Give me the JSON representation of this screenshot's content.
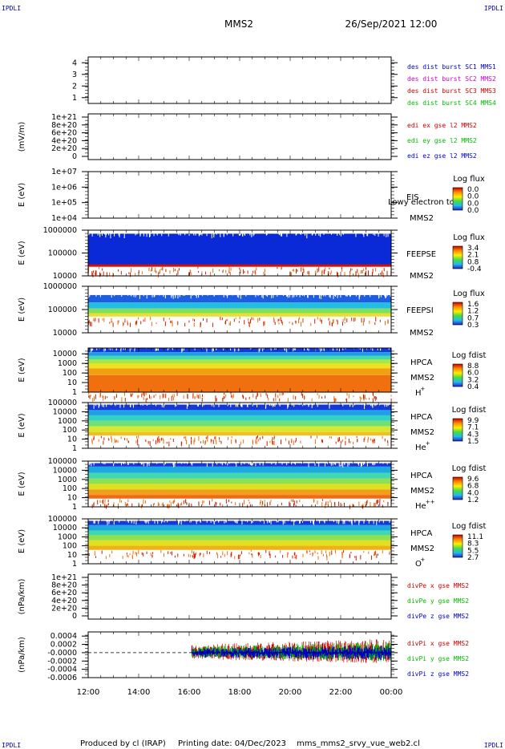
{
  "corner_labels": {
    "top_left": "IPDLI",
    "top_right": "IPDLI",
    "bottom_left": "IPDLI",
    "bottom_right": "IPDLI"
  },
  "header": {
    "title": "MMS2",
    "datetime": "26/Sep/2021 12:00"
  },
  "footer": {
    "produced_by": "Produced by cl (IRAP)",
    "printing_date": "Printing date: 04/Dec/2023",
    "filename": "mms_mms2_srvy_vue_web2.cl"
  },
  "colors": {
    "blue": "#0000cc",
    "magenta": "#cc00cc",
    "red": "#cc0000",
    "green": "#00bb00",
    "dash": "#000000"
  },
  "x_axis": {
    "tick_labels": [
      "12:00",
      "14:00",
      "16:00",
      "18:00",
      "20:00",
      "22:00",
      "00:00"
    ]
  },
  "chart_data": [
    {
      "type": "line",
      "panel": "dist-burst",
      "ylabel": "",
      "yticks": [
        "4",
        "3",
        "2",
        "1"
      ],
      "ylim": [
        0.5,
        4.5
      ],
      "legend": [
        "des dist burst SC1 MMS1",
        "des dist burst SC2 MMS2",
        "des dist burst SC3 MMS3",
        "des dist burst SC4 MMS4"
      ],
      "legend_colors": [
        "#0000cc",
        "#cc00cc",
        "#cc0000",
        "#00bb00"
      ],
      "series": []
    },
    {
      "type": "line",
      "panel": "edi-e-field",
      "ylabel": "(mV/m)",
      "yticks": [
        "1e+21",
        "8e+20",
        "6e+20",
        "4e+20",
        "2e+20",
        "0"
      ],
      "ylim": [
        0,
        1e+21
      ],
      "zero_line": true,
      "legend": [
        "edi ex gse l2 MMS2",
        "edi ey gse l2 MMS2",
        "edi ez gse l2 MMS2"
      ],
      "legend_colors": [
        "#cc0000",
        "#00bb00",
        "#0000cc"
      ],
      "series": []
    },
    {
      "type": "heatmap",
      "panel": "eis",
      "ylabel": "E (eV)",
      "yticks": [
        "1e+07",
        "1e+06",
        "1e+05",
        "1e+04"
      ],
      "ylim": [
        10000.0,
        10000000.0
      ],
      "log": true,
      "labels": [
        "EIS",
        "MMS2"
      ],
      "overlay_text": "Lowy electron to",
      "colorbar": {
        "title": "Log flux",
        "ticks": [
          "0.0",
          "0.0",
          "0.0",
          "0.0"
        ]
      }
    },
    {
      "type": "heatmap",
      "panel": "feeps-electron",
      "ylabel": "E (eV)",
      "yticks": [
        "1000000",
        "100000",
        "10000"
      ],
      "ylim": [
        10000.0,
        1000000.0
      ],
      "log": true,
      "labels": [
        "FEEPSE",
        "MMS2"
      ],
      "colorbar": {
        "title": "Log flux",
        "ticks": [
          "3.4",
          "2.1",
          "0.8",
          "-0.4"
        ]
      },
      "bands": [
        {
          "lo": 30000,
          "hi": 700000,
          "color": "#0a2ad8"
        },
        {
          "lo": 25000,
          "hi": 32000,
          "color": "#cc1100"
        }
      ]
    },
    {
      "type": "heatmap",
      "panel": "feeps-ion",
      "ylabel": "E (eV)",
      "yticks": [
        "1000000",
        "100000",
        "10000"
      ],
      "ylim": [
        10000.0,
        1000000.0
      ],
      "log": true,
      "labels": [
        "FEEPSI",
        "MMS2"
      ],
      "colorbar": {
        "title": "Log flux",
        "ticks": [
          "1.6",
          "1.2",
          "0.7",
          "0.3"
        ]
      },
      "bands": [
        {
          "lo": 200000,
          "hi": 420000,
          "color": "#1e5de0"
        },
        {
          "lo": 110000,
          "hi": 200000,
          "color": "#22bde0"
        },
        {
          "lo": 70000,
          "hi": 110000,
          "color": "#7fe060"
        },
        {
          "lo": 50000,
          "hi": 70000,
          "color": "#e8e030"
        }
      ]
    },
    {
      "type": "heatmap",
      "panel": "hpca-h",
      "ylabel": "E (eV)",
      "yticks": [
        "10000",
        "1000",
        "100",
        "10",
        "1"
      ],
      "ylim": [
        1,
        40000
      ],
      "log": true,
      "labels": [
        "HPCA",
        "MMS2",
        "H",
        "+"
      ],
      "colorbar": {
        "title": "Log fdist",
        "ticks": [
          "8.8",
          "6.0",
          "3.2",
          "0.4"
        ]
      },
      "bands": [
        {
          "lo": 15000,
          "hi": 40000,
          "color": "#1238e0"
        },
        {
          "lo": 6000,
          "hi": 15000,
          "color": "#1e9ee0"
        },
        {
          "lo": 2500,
          "hi": 6000,
          "color": "#48d8b0"
        },
        {
          "lo": 900,
          "hi": 2500,
          "color": "#a8e840"
        },
        {
          "lo": 300,
          "hi": 900,
          "color": "#f0e020"
        },
        {
          "lo": 60,
          "hi": 300,
          "color": "#f0a010"
        },
        {
          "lo": 1,
          "hi": 60,
          "color": "#f07010"
        }
      ]
    },
    {
      "type": "heatmap",
      "panel": "hpca-he",
      "ylabel": "E (eV)",
      "yticks": [
        "100000",
        "10000",
        "1000",
        "100",
        "10",
        "1"
      ],
      "ylim": [
        1,
        100000
      ],
      "log": true,
      "labels": [
        "HPCA",
        "MMS2",
        "He",
        "+"
      ],
      "colorbar": {
        "title": "Log fdist",
        "ticks": [
          "9.9",
          "7.1",
          "4.3",
          "1.5"
        ]
      },
      "bands": [
        {
          "lo": 15000,
          "hi": 60000,
          "color": "#1638d8"
        },
        {
          "lo": 4000,
          "hi": 15000,
          "color": "#1ea0e8"
        },
        {
          "lo": 1000,
          "hi": 4000,
          "color": "#34d0c8"
        },
        {
          "lo": 250,
          "hi": 1000,
          "color": "#70e070"
        },
        {
          "lo": 60,
          "hi": 250,
          "color": "#d8e830"
        },
        {
          "lo": 25,
          "hi": 60,
          "color": "#f0c020"
        }
      ]
    },
    {
      "type": "heatmap",
      "panel": "hpca-he2",
      "ylabel": "E (eV)",
      "yticks": [
        "100000",
        "10000",
        "1000",
        "100",
        "10",
        "1"
      ],
      "ylim": [
        1,
        100000
      ],
      "log": true,
      "labels": [
        "HPCA",
        "MMS2",
        "He",
        "++"
      ],
      "colorbar": {
        "title": "Log fdist",
        "ticks": [
          "9.6",
          "6.8",
          "4.0",
          "1.2"
        ]
      },
      "bands": [
        {
          "lo": 25000,
          "hi": 60000,
          "color": "#1638d8"
        },
        {
          "lo": 5000,
          "hi": 25000,
          "color": "#1ea8e0"
        },
        {
          "lo": 1200,
          "hi": 5000,
          "color": "#40d8b0"
        },
        {
          "lo": 300,
          "hi": 1200,
          "color": "#90e050"
        },
        {
          "lo": 80,
          "hi": 300,
          "color": "#e0e020"
        },
        {
          "lo": 20,
          "hi": 80,
          "color": "#f0a018"
        },
        {
          "lo": 8,
          "hi": 20,
          "color": "#f06818"
        }
      ]
    },
    {
      "type": "heatmap",
      "panel": "hpca-o",
      "ylabel": "E (eV)",
      "yticks": [
        "100000",
        "10000",
        "1000",
        "100",
        "10",
        "1"
      ],
      "ylim": [
        1,
        100000
      ],
      "log": true,
      "labels": [
        "HPCA",
        "MMS2",
        "O",
        "+"
      ],
      "colorbar": {
        "title": "Log fdist",
        "ticks": [
          "11.1",
          "8.3",
          "5.5",
          "2.7"
        ]
      },
      "bands": [
        {
          "lo": 20000,
          "hi": 60000,
          "color": "#1638d8"
        },
        {
          "lo": 5000,
          "hi": 20000,
          "color": "#1ea8e0"
        },
        {
          "lo": 1500,
          "hi": 5000,
          "color": "#40d8b0"
        },
        {
          "lo": 400,
          "hi": 1500,
          "color": "#90e050"
        },
        {
          "lo": 100,
          "hi": 400,
          "color": "#e0e020"
        },
        {
          "lo": 35,
          "hi": 100,
          "color": "#f0b018"
        }
      ]
    },
    {
      "type": "line",
      "panel": "div-pe",
      "ylabel": "(nPa/km)",
      "yticks": [
        "1e+21",
        "8e+20",
        "6e+20",
        "4e+20",
        "2e+20",
        "0"
      ],
      "ylim": [
        0,
        1e+21
      ],
      "zero_line": true,
      "legend": [
        "divPe x gse MMS2",
        "divPe y gse MMS2",
        "divPe z gse MMS2"
      ],
      "legend_colors": [
        "#cc0000",
        "#00bb00",
        "#0000cc"
      ],
      "series": []
    },
    {
      "type": "line",
      "panel": "div-pi",
      "ylabel": "(nPa/km)",
      "yticks": [
        "0.0004",
        "0.0002",
        "-0.0000",
        "-0.0002",
        "-0.0004",
        "-0.0006"
      ],
      "ylim": [
        -0.0006,
        0.0005
      ],
      "zero_line": true,
      "data_start_hour": 16.1,
      "legend": [
        "divPi x gse MMS2",
        "divPi y gse MMS2",
        "divPi z gse MMS2"
      ],
      "legend_colors": [
        "#cc0000",
        "#00bb00",
        "#0000cc"
      ],
      "series": [
        {
          "name": "divPi x gse MMS2",
          "color": "#cc0000",
          "range": [
            -0.00022,
            0.00028
          ]
        },
        {
          "name": "divPi y gse MMS2",
          "color": "#00bb00",
          "range": [
            -0.00018,
            0.00022
          ]
        },
        {
          "name": "divPi z gse MMS2",
          "color": "#0000cc",
          "range": [
            -0.00015,
            0.00015
          ]
        }
      ]
    }
  ]
}
